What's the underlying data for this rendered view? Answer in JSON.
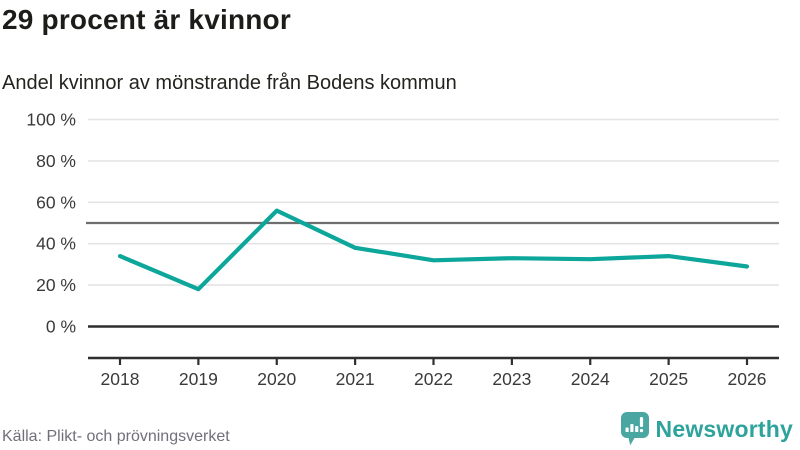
{
  "header": {
    "title": "29 procent är kvinnor",
    "subtitle": "Andel kvinnor av mönstrande från Bodens kommun"
  },
  "chart_data": {
    "type": "line",
    "title": "29 procent är kvinnor",
    "subtitle": "Andel kvinnor av mönstrande från Bodens kommun",
    "series_name": "Andel kvinnor av mönstrande",
    "categories": [
      "2018",
      "2019",
      "2020",
      "2021",
      "2022",
      "2023",
      "2024",
      "2025",
      "2026"
    ],
    "values": [
      34,
      18,
      56,
      38,
      32,
      33,
      32.5,
      34,
      29
    ],
    "unit": "%",
    "xlabel": "",
    "ylabel": "",
    "ylim": [
      0,
      100
    ],
    "yticks": [
      0,
      20,
      40,
      60,
      80,
      100
    ],
    "ytick_labels": [
      "0 %",
      "20 %",
      "40 %",
      "60 %",
      "80 %",
      "100 %"
    ],
    "reference_line": 50,
    "grid": true,
    "legend": "none",
    "line_color": "#0ca69b",
    "gridline_color": "#e4e4e4",
    "reference_line_color": "#6e6e6e",
    "axis_line_color": "#2f2f2f",
    "tick_label_color": "#3a3a3a"
  },
  "footer": {
    "source": "Källa: Plikt- och prövningsverket",
    "brand": "Newsworthy"
  },
  "colors": {
    "accent": "#0ca69b",
    "brand_icon": "#4aa6a1",
    "brand_text": "#2ea39c",
    "background": "#ffffff"
  }
}
